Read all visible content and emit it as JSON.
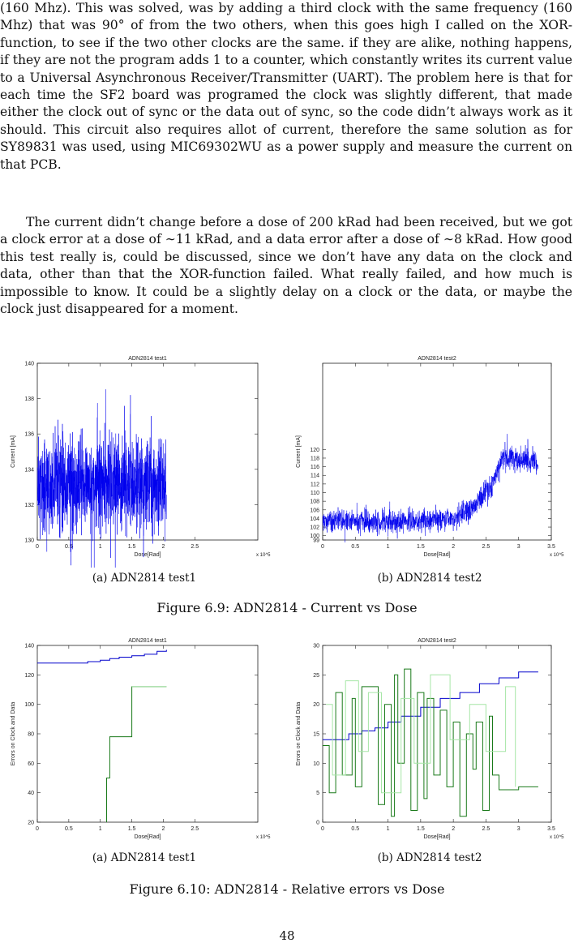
{
  "paragraphs": [
    "(160 Mhz). This was solved, was by adding a third clock with the same frequency (160 Mhz) that was 90° of from the two others, when this goes high I called on the XOR-function, to see if the two other clocks are the same. if they are alike, nothing happens, if they are not the program adds 1 to a counter, which constantly writes its current value to a Universal Asynchronous Receiver/Transmitter (UART). The problem here is that for each time the SF2 board was programed the clock was slightly different, that made either the clock out of sync or the data out of sync, so the code didn’t always work as it should. This circuit also requires allot of current, therefore the same solution as for SY89831 was used, using MIC69302WU as a power supply and measure the current on that PCB.",
    "The current didn’t change before a dose of 200 kRad had been received, but we got a clock error at a dose of ∼11 kRad, and a data error after a dose of ∼8 kRad. How good this test really is, could be discussed, since we don’t have any data on the clock and data, other than that the XOR-function failed. What really failed, and how much is impossible to know. It could be a slightly delay on a clock or the data, or maybe the clock just disappeared for a moment."
  ],
  "figure_6_9": {
    "caption": "Figure 6.9: ADN2814 - Current vs Dose",
    "sub_a": "(a) ADN2814 test1",
    "sub_b": "(b) ADN2814 test2"
  },
  "figure_6_10": {
    "caption": "Figure 6.10: ADN2814 - Relative errors vs Dose",
    "sub_a": "(a) ADN2814 test1",
    "sub_b": "(b) ADN2814 test2"
  },
  "page_number": "48",
  "chart_data": [
    {
      "id": "fig69a",
      "type": "line",
      "title": "ADN2814 test1",
      "xlabel": "Dose[Rad]",
      "ylabel": "Current [mA]",
      "x_multiplier": "x 10^5",
      "xlim": [
        0,
        3.5
      ],
      "ylim": [
        130,
        140
      ],
      "xticks": [
        "0",
        "0.5",
        "1",
        "1.5",
        "2",
        "2.5"
      ],
      "yticks": [
        "130",
        "132",
        "134",
        "136",
        "138",
        "140"
      ],
      "series": [
        {
          "color": "#0000ee",
          "noisy": true,
          "x_end": 2.05,
          "mean": 133.2,
          "spread": 1.2,
          "profile": [
            [
              0,
              133.2
            ],
            [
              2.05,
              133.2
            ]
          ]
        }
      ]
    },
    {
      "id": "fig69b",
      "type": "line",
      "title": "ADN2814 test2",
      "xlabel": "Dose[Rad]",
      "ylabel": "Current [mA]",
      "x_multiplier": "x 10^5",
      "xlim": [
        0,
        3.5
      ],
      "ylim": [
        99,
        140
      ],
      "xticks": [
        "0",
        "0.5",
        "1",
        "1.5",
        "2",
        "2.5",
        "3",
        "3.5"
      ],
      "yticks": [
        "99",
        "100",
        "102",
        "104",
        "106",
        "108",
        "110",
        "112",
        "114",
        "116",
        "118",
        "120"
      ],
      "series": [
        {
          "color": "#0000ee",
          "noisy": true,
          "x_end": 3.3,
          "spread": 1.3,
          "profile": [
            [
              0,
              103.6
            ],
            [
              0.6,
              103.3
            ],
            [
              1.3,
              103.3
            ],
            [
              2.0,
              104.0
            ],
            [
              2.3,
              106.0
            ],
            [
              2.6,
              112.0
            ],
            [
              2.75,
              118.0
            ],
            [
              3.3,
              117.0
            ]
          ]
        }
      ]
    },
    {
      "id": "fig610a",
      "type": "line",
      "title": "ADN2814 test1",
      "xlabel": "Dose[Rad]",
      "ylabel": "Errors on Clock and Data",
      "x_multiplier": "x 10^5",
      "xlim": [
        0,
        3.5
      ],
      "ylim": [
        20,
        140
      ],
      "xticks": [
        "0",
        "0.5",
        "1",
        "1.5",
        "2",
        "2.5"
      ],
      "yticks": [
        "20",
        "40",
        "60",
        "80",
        "100",
        "120",
        "140"
      ],
      "series": [
        {
          "color": "#0000cc",
          "style": "step",
          "points": [
            [
              0,
              128
            ],
            [
              0.7,
              128
            ],
            [
              0.8,
              129
            ],
            [
              1.0,
              130
            ],
            [
              1.15,
              131
            ],
            [
              1.3,
              132
            ],
            [
              1.5,
              133
            ],
            [
              1.7,
              134
            ],
            [
              1.9,
              136
            ],
            [
              2.05,
              137
            ]
          ]
        },
        {
          "color": "#1a7a1a",
          "style": "step",
          "points": [
            [
              1.1,
              20
            ],
            [
              1.1,
              50
            ],
            [
              1.15,
              78
            ],
            [
              1.5,
              78
            ],
            [
              1.5,
              112
            ],
            [
              2.05,
              112
            ]
          ]
        },
        {
          "color": "#a6e6a6",
          "style": "step",
          "points": [
            [
              1.5,
              112
            ],
            [
              2.05,
              112
            ]
          ]
        }
      ]
    },
    {
      "id": "fig610b",
      "type": "line",
      "title": "ADN2814 test2",
      "xlabel": "Dose[Rad]",
      "ylabel": "Errors on Clock and Data",
      "x_multiplier": "x 10^5",
      "xlim": [
        0,
        3.5
      ],
      "ylim": [
        0,
        30
      ],
      "xticks": [
        "0",
        "0.5",
        "1",
        "1.5",
        "2",
        "2.5",
        "3",
        "3.5"
      ],
      "yticks": [
        "0",
        "5",
        "10",
        "15",
        "20",
        "25",
        "30"
      ],
      "series": [
        {
          "color": "#0000cc",
          "style": "step",
          "points": [
            [
              0,
              14
            ],
            [
              0.2,
              14
            ],
            [
              0.4,
              15
            ],
            [
              0.6,
              15.5
            ],
            [
              0.8,
              16
            ],
            [
              1.0,
              17
            ],
            [
              1.2,
              18
            ],
            [
              1.5,
              19.5
            ],
            [
              1.8,
              21
            ],
            [
              2.1,
              22
            ],
            [
              2.4,
              23.5
            ],
            [
              2.7,
              24.5
            ],
            [
              3.0,
              25.5
            ],
            [
              3.3,
              25.5
            ]
          ]
        },
        {
          "color": "#1a7a1a",
          "style": "step",
          "points": [
            [
              0,
              13
            ],
            [
              0.1,
              5
            ],
            [
              0.2,
              22
            ],
            [
              0.3,
              8
            ],
            [
              0.45,
              21
            ],
            [
              0.5,
              6
            ],
            [
              0.6,
              23
            ],
            [
              0.8,
              23
            ],
            [
              0.85,
              3
            ],
            [
              0.95,
              20
            ],
            [
              1.05,
              1
            ],
            [
              1.1,
              25
            ],
            [
              1.15,
              10
            ],
            [
              1.25,
              26
            ],
            [
              1.35,
              2
            ],
            [
              1.45,
              22
            ],
            [
              1.55,
              4
            ],
            [
              1.6,
              21
            ],
            [
              1.7,
              8
            ],
            [
              1.8,
              19
            ],
            [
              1.9,
              6
            ],
            [
              2.0,
              17
            ],
            [
              2.1,
              1
            ],
            [
              2.2,
              15
            ],
            [
              2.3,
              9
            ],
            [
              2.35,
              17
            ],
            [
              2.45,
              2
            ],
            [
              2.55,
              18
            ],
            [
              2.6,
              8
            ],
            [
              2.7,
              5.5
            ],
            [
              2.9,
              5.5
            ],
            [
              3.0,
              6
            ],
            [
              3.3,
              6
            ]
          ]
        },
        {
          "color": "#a6e6a6",
          "style": "step",
          "points": [
            [
              0.05,
              20
            ],
            [
              0.15,
              8
            ],
            [
              0.35,
              24
            ],
            [
              0.55,
              12
            ],
            [
              0.7,
              22
            ],
            [
              0.9,
              5
            ],
            [
              1.2,
              21
            ],
            [
              1.4,
              10
            ],
            [
              1.65,
              25
            ],
            [
              1.95,
              14
            ],
            [
              2.25,
              20
            ],
            [
              2.5,
              12
            ],
            [
              2.8,
              23
            ],
            [
              2.95,
              6
            ]
          ]
        }
      ]
    }
  ]
}
